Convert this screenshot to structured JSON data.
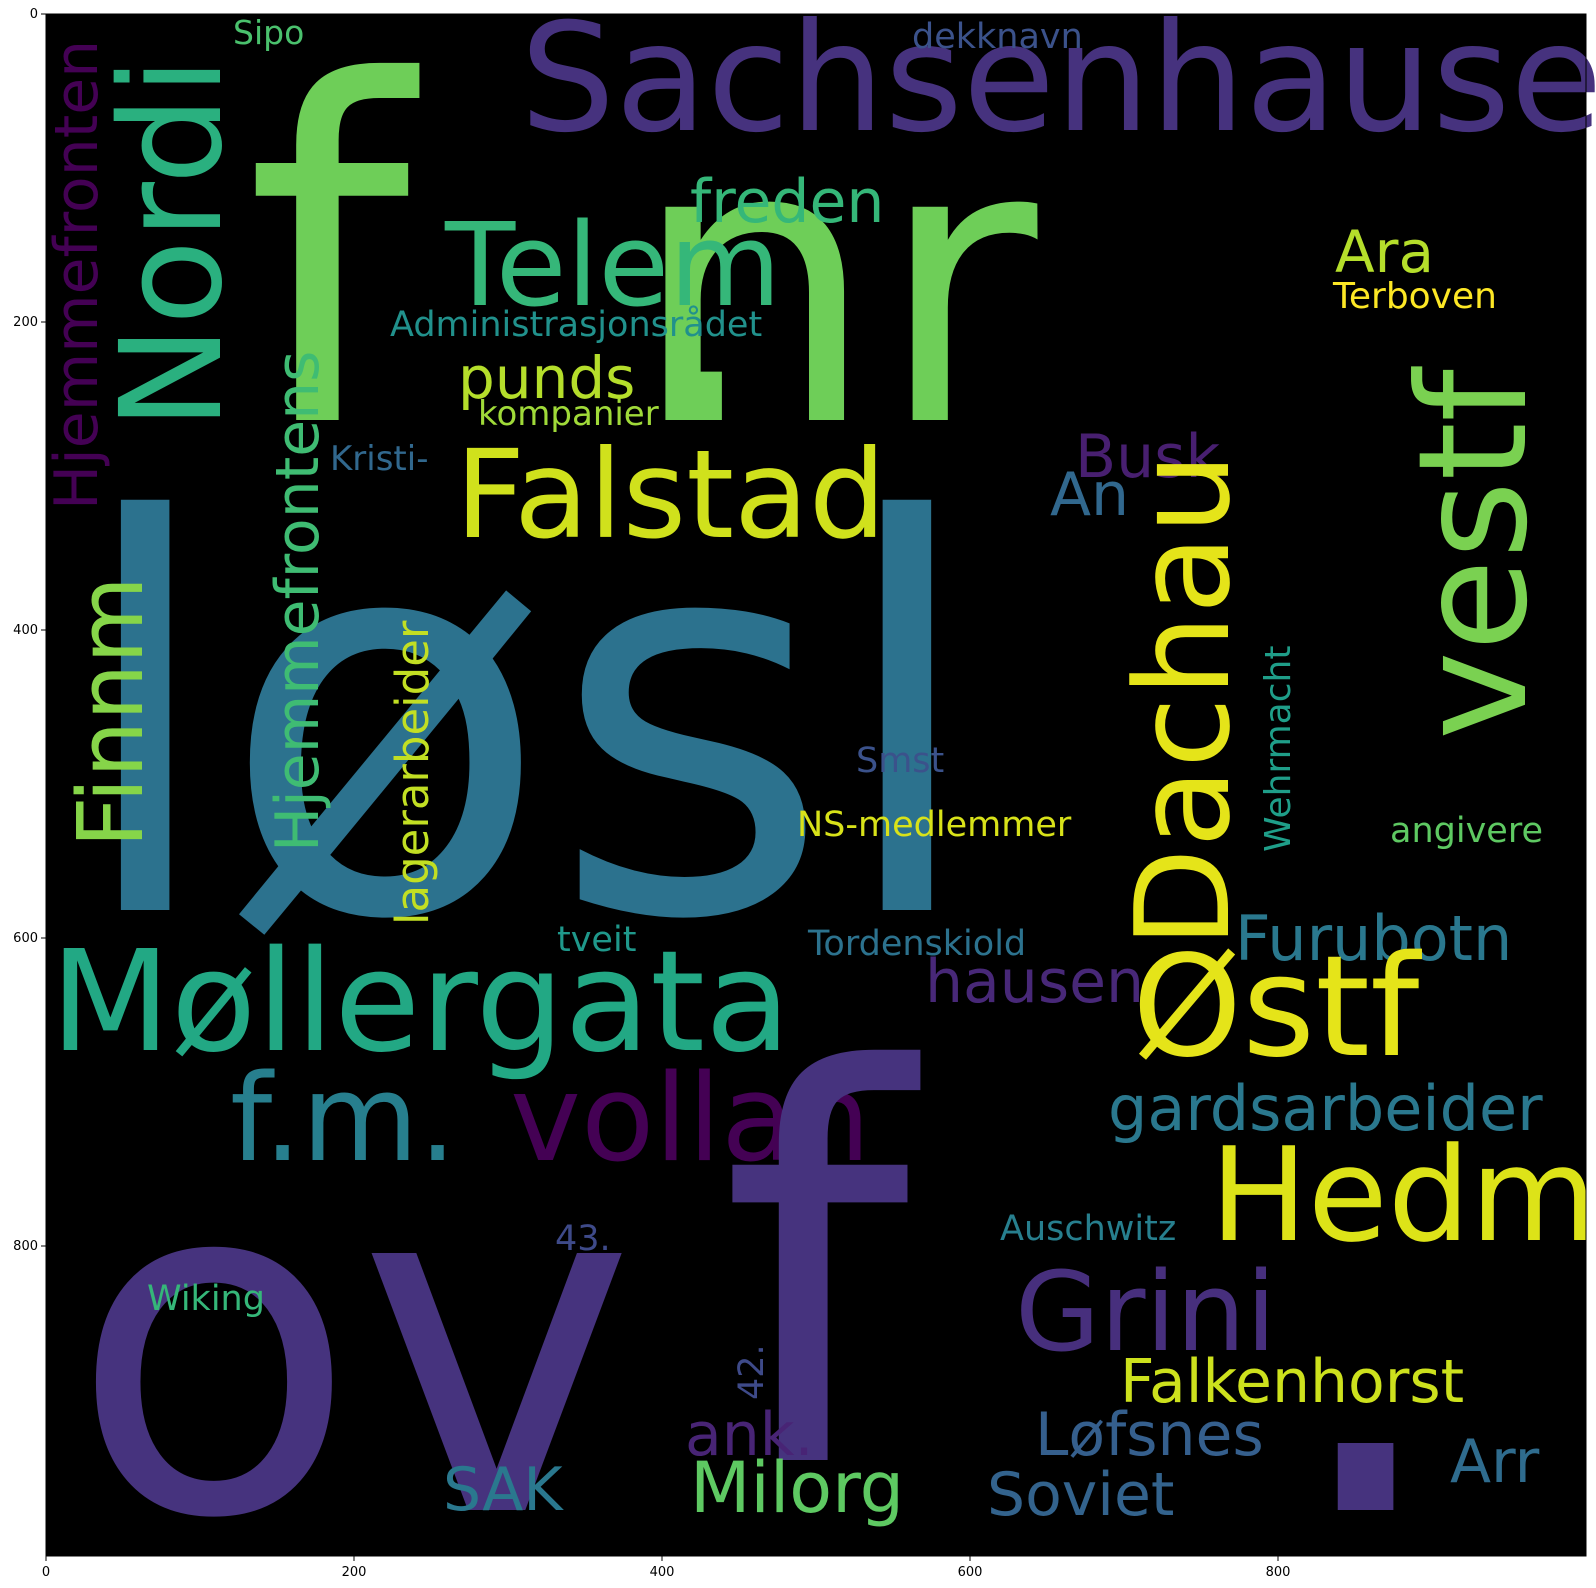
{
  "x_ticks": [
    "0",
    "200",
    "400",
    "600",
    "800"
  ],
  "y_ticks": [
    "0",
    "200",
    "400",
    "600",
    "800"
  ],
  "words": [
    {
      "text": "f",
      "color": "#6ece58"
    },
    {
      "text": "nr",
      "color": "#6ece58"
    },
    {
      "text": ".",
      "color": "#6ece58"
    },
    {
      "text": "Sachsenhausen",
      "color": "#46327e"
    },
    {
      "text": "Telem",
      "color": "#35b779"
    },
    {
      "text": "Nordi",
      "color": "#2ab07f"
    },
    {
      "text": "freden",
      "color": "#35b779"
    },
    {
      "text": "dekknavn",
      "color": "#3b528b"
    },
    {
      "text": "Sipo",
      "color": "#4ac16d"
    },
    {
      "text": "Ara",
      "color": "#b5de2b"
    },
    {
      "text": "Terboven",
      "color": "#fde725"
    },
    {
      "text": "Administrasjonsrådet",
      "color": "#21918c"
    },
    {
      "text": "punds",
      "color": "#b5de2b"
    },
    {
      "text": "kompanier",
      "color": "#a0da39"
    },
    {
      "text": "Hjemmefronten",
      "color": "#440154"
    },
    {
      "text": "løsl",
      "color": "#2c728e"
    },
    {
      "text": "Falstad",
      "color": "#d0e11c"
    },
    {
      "text": "vestf",
      "color": "#7ad151"
    },
    {
      "text": "Busk",
      "color": "#481f70"
    },
    {
      "text": "Kristi-",
      "color": "#31688e"
    },
    {
      "text": "An",
      "color": "#31688e"
    },
    {
      "text": "Finnm",
      "color": "#86d549"
    },
    {
      "text": "Hjemmefrontens",
      "color": "#3fbc73"
    },
    {
      "text": "lagerarbeider",
      "color": "#c2df23"
    },
    {
      "text": "Dachau",
      "color": "#e5e419"
    },
    {
      "text": "Smst",
      "color": "#3b528b"
    },
    {
      "text": "Wehrmacht",
      "color": "#1f9e89"
    },
    {
      "text": "NS-medlemmer",
      "color": "#d8e219"
    },
    {
      "text": "angivere",
      "color": "#5ec962"
    },
    {
      "text": "tveit",
      "color": "#1f988b"
    },
    {
      "text": "Tordenskiold",
      "color": "#2c728e"
    },
    {
      "text": "Furubotn",
      "color": "#2a788e"
    },
    {
      "text": "Møllergata",
      "color": "#22a884"
    },
    {
      "text": "hausen",
      "color": "#482878"
    },
    {
      "text": "Østf",
      "color": "#e5e419"
    },
    {
      "text": "f.m.",
      "color": "#277f8e"
    },
    {
      "text": "vollan",
      "color": "#440154"
    },
    {
      "text": "gardsarbeider",
      "color": "#2a788e"
    },
    {
      "text": "Hedm",
      "color": "#dde318"
    },
    {
      "text": "ov",
      "color": "#46337e"
    },
    {
      "text": "f",
      "color": "#46337e"
    },
    {
      "text": ".",
      "color": "#46337e"
    },
    {
      "text": "Grini",
      "color": "#472f7d"
    },
    {
      "text": "Auschwitz",
      "color": "#277f8e"
    },
    {
      "text": "43.",
      "color": "#3e4a89"
    },
    {
      "text": "Wiking",
      "color": "#35b779"
    },
    {
      "text": "42.",
      "color": "#3e4a89"
    },
    {
      "text": "Falkenhorst",
      "color": "#cde11d"
    },
    {
      "text": "ank.",
      "color": "#482475"
    },
    {
      "text": "Løfsnes",
      "color": "#355f8d"
    },
    {
      "text": "Arr",
      "color": "#2f6c8e"
    },
    {
      "text": "SAK",
      "color": "#2a788e"
    },
    {
      "text": "Milorg",
      "color": "#5ec962"
    },
    {
      "text": "Soviet",
      "color": "#33638d"
    }
  ]
}
